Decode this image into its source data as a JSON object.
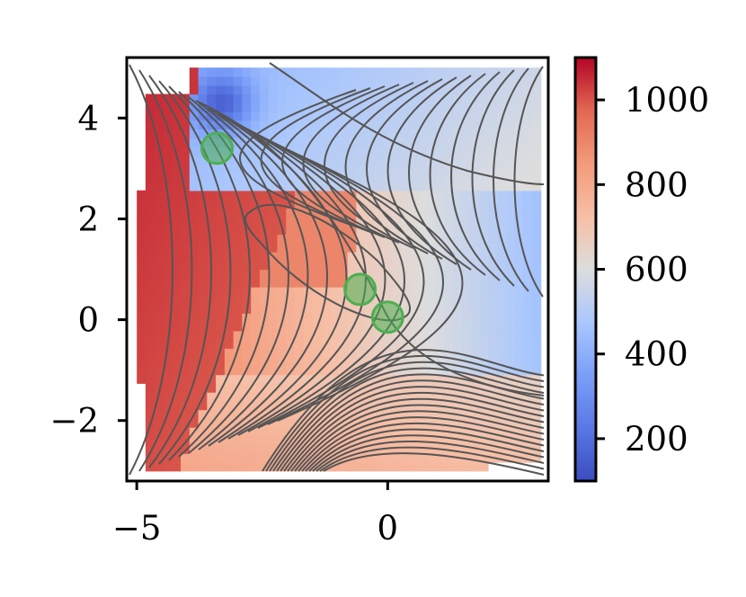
{
  "chart_data": {
    "type": "heatmap",
    "title": "",
    "xlabel": "",
    "ylabel": "",
    "xlim": [
      -5.2,
      3.2
    ],
    "ylim": [
      -3.2,
      5.2
    ],
    "x_ticks": [
      -5,
      0
    ],
    "x_tick_labels": [
      "−5",
      "0"
    ],
    "y_ticks": [
      -2,
      0,
      2,
      4
    ],
    "y_tick_labels": [
      "−2",
      "0",
      "2",
      "4"
    ],
    "colorbar": {
      "colormap": "coolwarm",
      "range": [
        100,
        1100
      ],
      "ticks": [
        200,
        400,
        600,
        800,
        1000
      ],
      "tick_labels": [
        "200",
        "400",
        "600",
        "800",
        "1000"
      ]
    },
    "grid": false,
    "contour_lines": "dark gray contours of the underlying potential surface overlaid on the heatmap",
    "markers": [
      {
        "x": -3.4,
        "y": 3.4,
        "color": "#4caf50"
      },
      {
        "x": -0.55,
        "y": 0.6,
        "color": "#4caf50"
      },
      {
        "x": 0.0,
        "y": 0.05,
        "color": "#4caf50"
      }
    ],
    "colors": {
      "low": "#3b4cc0",
      "mid": "#dddddd",
      "high": "#b40426",
      "contour": "#555555",
      "marker": "#4caf50"
    }
  }
}
